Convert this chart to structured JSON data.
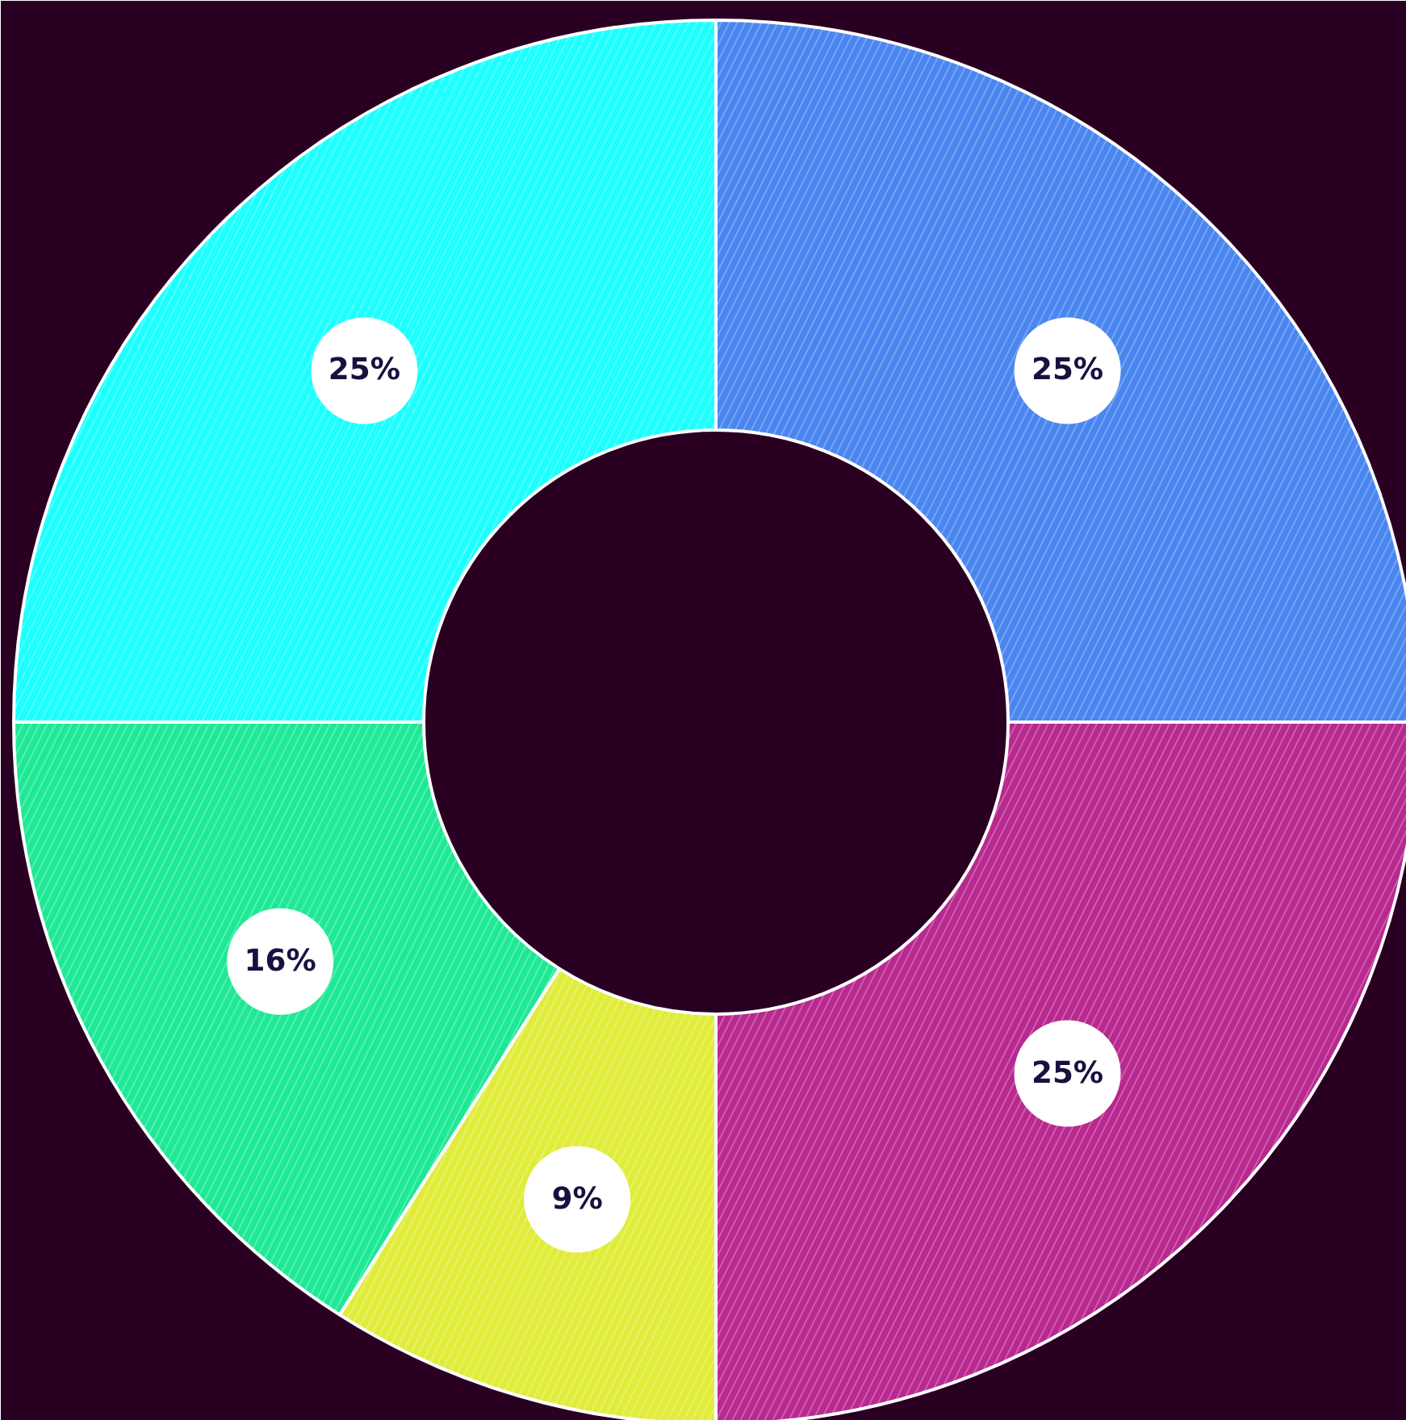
{
  "chart_data": {
    "type": "donut",
    "categories": [
      null,
      null,
      null,
      null,
      null
    ],
    "values": [
      25,
      25,
      9,
      16,
      25
    ],
    "colors": [
      "#4a86f0",
      "#b8288f",
      "#e0ec3a",
      "#1ee896",
      "#1cffff"
    ],
    "value_labels": [
      "25%",
      "25%",
      "9%",
      "16%",
      "25%"
    ]
  }
}
